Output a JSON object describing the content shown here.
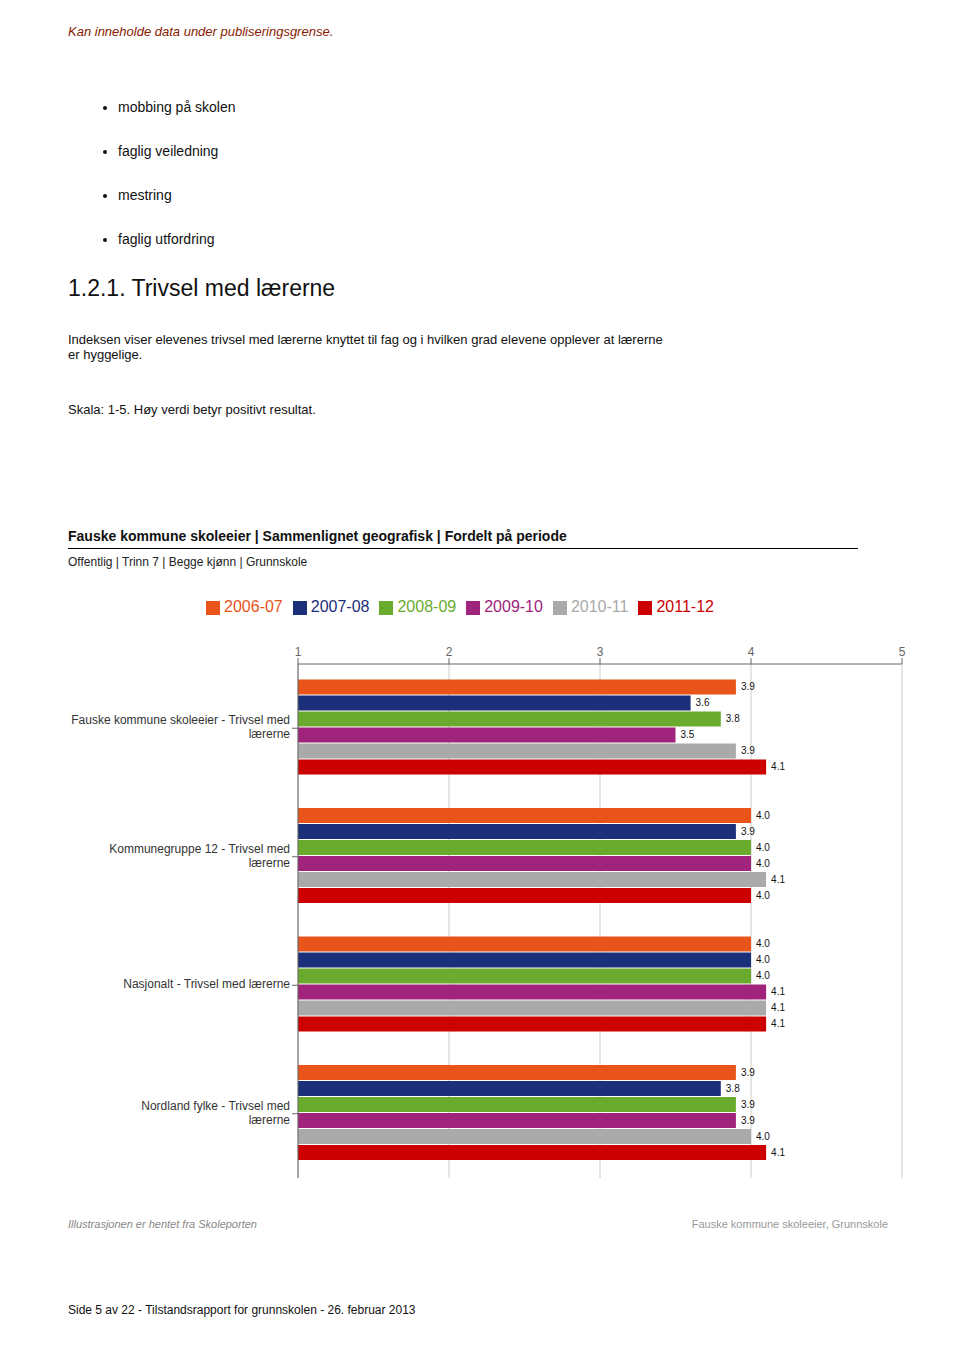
{
  "chart_data": {
    "type": "bar",
    "orientation": "horizontal",
    "title": "Fauske kommune skoleeier | Sammenlignet geografisk | Fordelt på periode",
    "subtitle": "Offentlig | Trinn 7 | Begge kjønn | Grunnskole",
    "annotations": [
      "Kan inneholde data under publiseringsgrense.",
      "mobbing på skolen",
      "faglig veiledning",
      "mestring",
      "faglig utfordring",
      "1.2.1.  Trivsel med lærerne",
      "Indeksen viser elevenes trivsel med lærerne knyttet til fag og i hvilken grad elevene opplever at lærerne\ner hyggelige.",
      "Skala: 1-5. Høy verdi betyr positivt resultat.",
      "Illustrasjonen er hentet fra Skoleporten",
      "Fauske kommune skoleeier, Grunnskole",
      "Side 5 av 22 - Tilstandsrapport for grunnskolen - 26. februar 2013"
    ],
    "categories": [
      "Fauske kommune skoleeier - Trivsel med\nlærerne",
      "Kommunegruppe 12 - Trivsel med\nlærerne",
      "Nasjonalt - Trivsel med lærerne",
      "Nordland fylke - Trivsel med\nlærerne"
    ],
    "series": [
      {
        "name": "2006-07",
        "color": "#E8541A",
        "values": [
          3.9,
          4.0,
          4.0,
          3.9
        ],
        "value_labels": [
          "3.9",
          "4.0",
          "4.0",
          "3.9"
        ]
      },
      {
        "name": "2007-08",
        "color": "#1B2F7A",
        "values": [
          3.6,
          3.9,
          4.0,
          3.8
        ],
        "value_labels": [
          "3.6",
          "3.9",
          "4.0",
          "3.8"
        ]
      },
      {
        "name": "2008-09",
        "color": "#6AAB2E",
        "values": [
          3.8,
          4.0,
          4.0,
          3.9
        ],
        "value_labels": [
          "3.8",
          "4.0",
          "4.0",
          "3.9"
        ]
      },
      {
        "name": "2009-10",
        "color": "#A0237C",
        "values": [
          3.5,
          4.0,
          4.1,
          3.9
        ],
        "value_labels": [
          "3.5",
          "4.0",
          "4.1",
          "3.9"
        ]
      },
      {
        "name": "2010-11",
        "color": "#AAAAAA",
        "values": [
          3.9,
          4.1,
          4.1,
          4.0
        ],
        "value_labels": [
          "3.9",
          "4.1",
          "4.1",
          "4.0"
        ]
      },
      {
        "name": "2011-12",
        "color": "#CC0000",
        "values": [
          4.1,
          4.0,
          4.1,
          4.1
        ],
        "value_labels": [
          "4.1",
          "4.0",
          "4.1",
          "4.1"
        ]
      }
    ],
    "xlim": [
      1,
      5
    ],
    "xticks": [
      1,
      2,
      3,
      4,
      5
    ],
    "grid": true,
    "data_labels": true,
    "legend": "top"
  }
}
